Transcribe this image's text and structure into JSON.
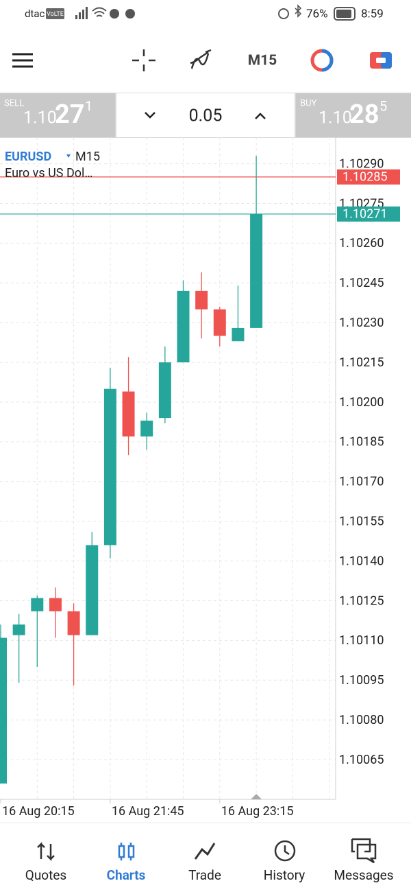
{
  "status_bar": {
    "carrier": "dtac",
    "network": "VoLTE",
    "battery": "76%",
    "time": "8:59"
  },
  "toolbar": {
    "timeframe": "M15"
  },
  "trade_panel": {
    "sell": {
      "label": "SELL",
      "price_prefix": "1.10",
      "price_big": "27",
      "price_small": "1"
    },
    "volume": "0.05",
    "buy": {
      "label": "BUY",
      "price_prefix": "1.10",
      "price_big": "28",
      "price_small": "5"
    }
  },
  "chart_data": {
    "type": "candlestick",
    "symbol": "EURUSD",
    "timeframe": "M15",
    "description": "Euro vs US Dol…",
    "categories": [
      "16 Aug 20:15",
      null,
      null,
      null,
      null,
      null,
      "16 Aug 21:45",
      null,
      null,
      null,
      null,
      null,
      "16 Aug 23:15",
      null,
      null
    ],
    "open": [
      1.10056,
      1.10112,
      1.10121,
      1.10126,
      1.10121,
      1.10112,
      1.10146,
      1.10204,
      1.10187,
      1.10194,
      1.10215,
      1.10242,
      1.10235,
      1.10223,
      1.10228
    ],
    "high": [
      1.10116,
      1.1012,
      1.10127,
      1.1013,
      1.10124,
      1.10151,
      1.10213,
      1.10217,
      1.10196,
      1.10221,
      1.10246,
      1.10249,
      1.10236,
      1.10244,
      1.10293
    ],
    "low": [
      1.10056,
      1.10094,
      1.101,
      1.10111,
      1.10093,
      1.10112,
      1.10141,
      1.1018,
      1.10182,
      1.10192,
      1.10215,
      1.10224,
      1.10221,
      1.10223,
      1.10228
    ],
    "close": [
      1.10111,
      1.10116,
      1.10126,
      1.10121,
      1.10112,
      1.10146,
      1.10205,
      1.10187,
      1.10193,
      1.10215,
      1.10242,
      1.10235,
      1.10225,
      1.10228,
      1.10271
    ],
    "up_color": "#26a69a",
    "down_color": "#ef5350",
    "ylim": [
      1.1005,
      1.103
    ],
    "yticks": [
      {
        "value": 1.1029,
        "label": "1.10290"
      },
      1.10275,
      {
        "value": 1.1026,
        "label": "1.10260"
      },
      1.10245,
      {
        "value": 1.1023,
        "label": "1.10230"
      },
      1.10215,
      {
        "value": 1.102,
        "label": "1.10200"
      },
      1.10185,
      {
        "value": 1.1017,
        "label": "1.10170"
      },
      1.10155,
      {
        "value": 1.1014,
        "label": "1.10140"
      },
      1.10125,
      {
        "value": 1.1011,
        "label": "1.10110"
      },
      1.10095,
      {
        "value": 1.1008,
        "label": "1.10080"
      },
      1.10065
    ],
    "grid": true,
    "ask": {
      "value": 1.10285,
      "color": "#ef5350"
    },
    "bid": {
      "value": 1.10271,
      "color": "#26a69a"
    }
  },
  "nav": {
    "items": [
      "Quotes",
      "Charts",
      "Trade",
      "History",
      "Messages"
    ],
    "active": 1
  }
}
